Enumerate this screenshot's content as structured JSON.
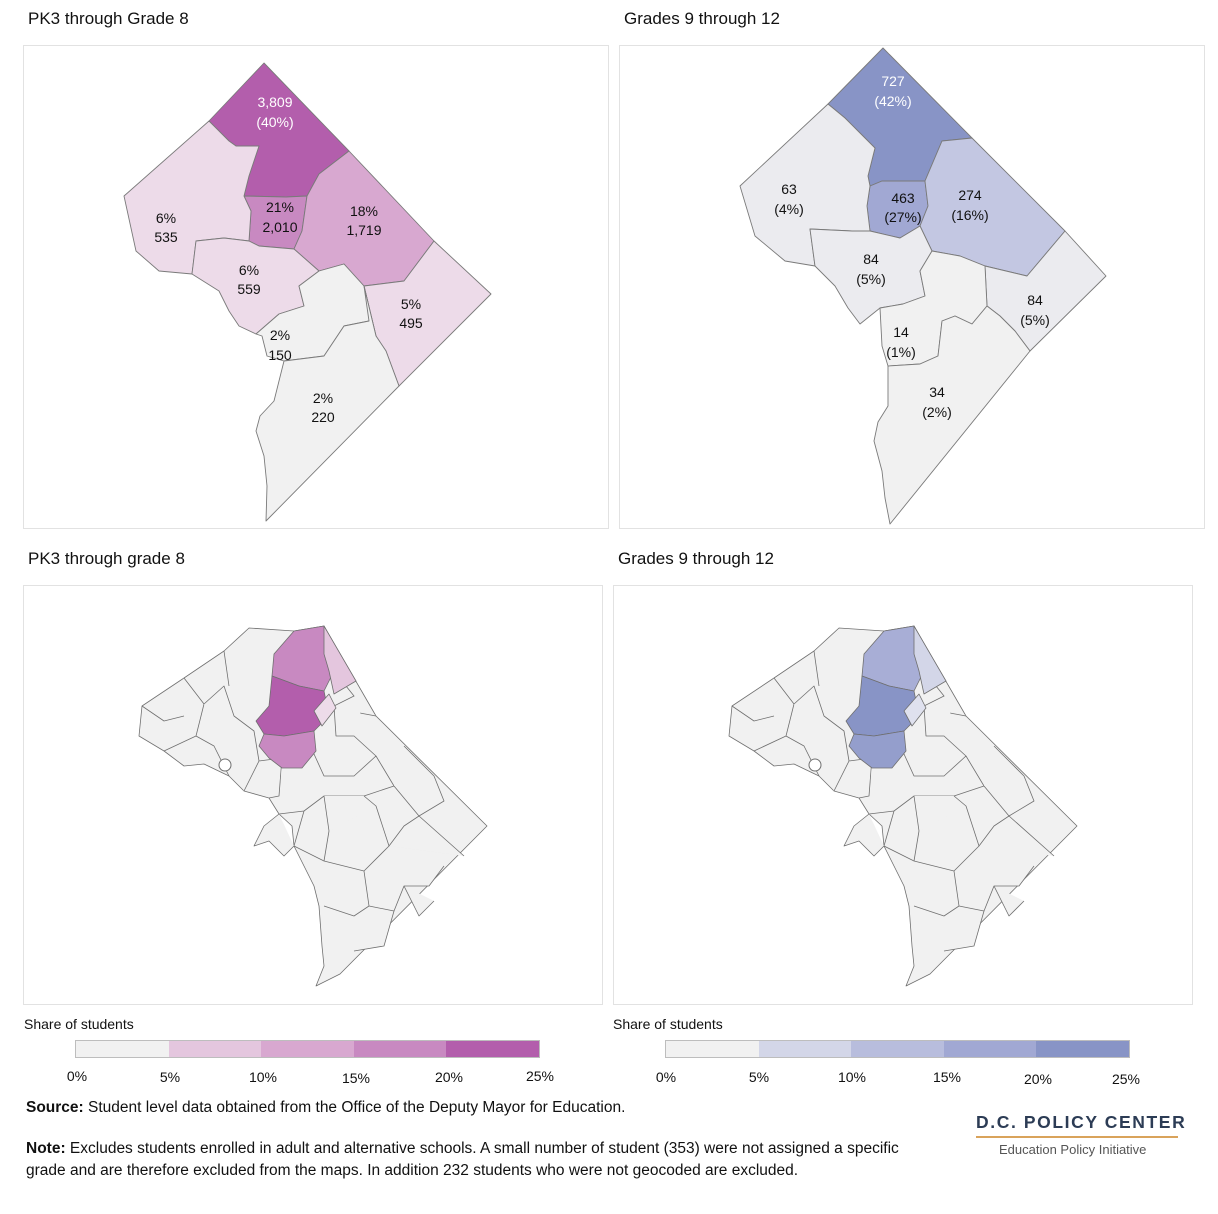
{
  "maps": {
    "top_left": {
      "title": "PK3 through Grade 8",
      "labels": [
        {
          "line1": "3,809",
          "line2": "(40%)"
        },
        {
          "line1": "21%",
          "line2": "2,010"
        },
        {
          "line1": "18%",
          "line2": "1,719"
        },
        {
          "line1": "6%",
          "line2": "535"
        },
        {
          "line1": "6%",
          "line2": "559"
        },
        {
          "line1": "5%",
          "line2": "495"
        },
        {
          "line1": "2%",
          "line2": "150"
        },
        {
          "line1": "2%",
          "line2": "220"
        }
      ]
    },
    "top_right": {
      "title": "Grades 9 through 12",
      "labels": [
        {
          "line1": "727",
          "line2": "(42%)"
        },
        {
          "line1": "463",
          "line2": "(27%)"
        },
        {
          "line1": "274",
          "line2": "(16%)"
        },
        {
          "line1": "63",
          "line2": "(4%)"
        },
        {
          "line1": "84",
          "line2": "(5%)"
        },
        {
          "line1": "84",
          "line2": "(5%)"
        },
        {
          "line1": "14",
          "line2": "(1%)"
        },
        {
          "line1": "34",
          "line2": "(2%)"
        }
      ]
    },
    "bottom_left": {
      "title": "PK3 through grade 8"
    },
    "bottom_right": {
      "title": "Grades 9 through 12"
    }
  },
  "legends": {
    "purple": {
      "title": "Share of students",
      "ticks": [
        "0%",
        "5%",
        "10%",
        "15%",
        "20%",
        "25%"
      ],
      "colors": [
        "#f1f1f1",
        "#e4c6de",
        "#d8a8d0",
        "#c889c1",
        "#b35eac"
      ]
    },
    "blue": {
      "title": "Share of students",
      "ticks": [
        "0%",
        "5%",
        "10%",
        "15%",
        "20%",
        "25%"
      ],
      "colors": [
        "#f1f1f1",
        "#d3d6e8",
        "#b8bddd",
        "#a1a8d3",
        "#8894c6"
      ]
    }
  },
  "footer": {
    "source_label": "Source:",
    "source_text": " Student level data obtained from the Office of the Deputy Mayor for Education.",
    "note_label": "Note:",
    "note_text": " Excludes students enrolled in adult and alternative schools. A small number of student (353) were not assigned a specific grade and are therefore excluded from the maps. In addition 232 students who were not geocoded are excluded."
  },
  "logo": {
    "name": "D.C. POLICY CENTER",
    "subtitle": "Education Policy Initiative"
  }
}
